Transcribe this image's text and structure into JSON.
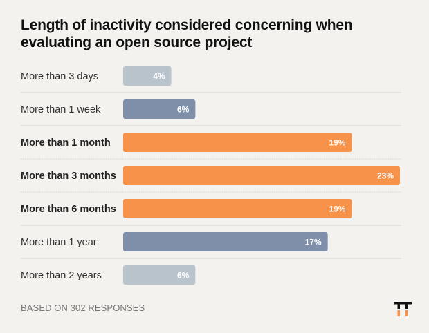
{
  "chart_data": {
    "type": "bar",
    "orientation": "horizontal",
    "title": "Length of inactivity considered concerning when evaluating an open source project",
    "categories": [
      "More than 3 days",
      "More than 1 week",
      "More than 1 month",
      "More than 3 months",
      "More than 6 months",
      "More than 1 year",
      "More than 2 years"
    ],
    "values": [
      4,
      6,
      19,
      23,
      19,
      17,
      6
    ],
    "value_labels": [
      "4%",
      "6%",
      "19%",
      "23%",
      "19%",
      "17%",
      "6%"
    ],
    "unit": "%",
    "highlighted": [
      false,
      false,
      true,
      true,
      true,
      false,
      false
    ],
    "bar_colors": [
      "#b9c3cb",
      "#7f8faa",
      "#f7924a",
      "#f7924a",
      "#f7924a",
      "#7f8faa",
      "#b9c3cb"
    ],
    "xlim": [
      0,
      23
    ],
    "grid": false,
    "legend": "none"
  },
  "footnote": "BASED ON 302 RESPONSES",
  "logo_icon": "brand-logo-icon",
  "colors": {
    "background": "#f3f2ee",
    "logo_dark": "#111111",
    "logo_accent": "#f7924a"
  }
}
